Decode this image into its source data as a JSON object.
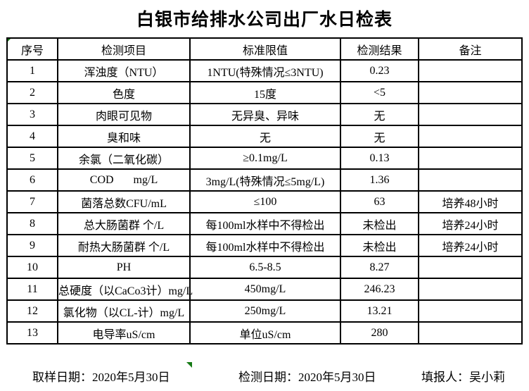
{
  "title": "白银市给排水公司出厂水日检表",
  "table": {
    "headers": {
      "no": "序号",
      "item": "检测项目",
      "limit": "标准限值",
      "result": "检测结果",
      "note": "备注"
    },
    "rows": [
      {
        "no": "1",
        "item": "浑浊度（NTU）",
        "limit": "1NTU(特殊情况≤3NTU)",
        "result": "0.23",
        "note": ""
      },
      {
        "no": "2",
        "item": "色度",
        "limit": "15度",
        "result": "<5",
        "note": ""
      },
      {
        "no": "3",
        "item": "肉眼可见物",
        "limit": "无异臭、异味",
        "result": "无",
        "note": ""
      },
      {
        "no": "4",
        "item": "臭和味",
        "limit": "无",
        "result": "无",
        "note": ""
      },
      {
        "no": "5",
        "item": "余氯（二氧化碳）",
        "limit": "≥0.1mg/L",
        "result": "0.13",
        "note": ""
      },
      {
        "no": "6",
        "item": "COD       mg/L",
        "limit": "3mg/L(特殊情况≤5mg/L)",
        "result": "1.36",
        "note": ""
      },
      {
        "no": "7",
        "item": "菌落总数CFU/mL",
        "limit": "≤100",
        "result": "63",
        "note": "培养48小时"
      },
      {
        "no": "8",
        "item": "总大肠菌群 个/L",
        "limit": "每100ml水样中不得检出",
        "result": "未检出",
        "note": "培养24小时"
      },
      {
        "no": "9",
        "item": "耐热大肠菌群 个/L",
        "limit": "每100ml水样中不得检出",
        "result": "未检出",
        "note": "培养24小时"
      },
      {
        "no": "10",
        "item": "PH",
        "limit": "6.5-8.5",
        "result": "8.27",
        "note": ""
      },
      {
        "no": "11",
        "item": "总硬度（以CaCo3计）mg/L",
        "limit": "450mg/L",
        "result": "246.23",
        "note": ""
      },
      {
        "no": "12",
        "item": "氯化物（以CL-计）mg/L",
        "limit": "250mg/L",
        "result": "13.21",
        "note": ""
      },
      {
        "no": "13",
        "item": "电导率uS/cm",
        "limit": "单位uS/cm",
        "result": "280",
        "note": ""
      }
    ]
  },
  "footer": {
    "sampling_date": "取样日期：2020年5月30日",
    "test_date": "检测日期：2020年5月30日",
    "reporter": "填报人：吴小莉"
  },
  "colors": {
    "marker_green": "#157a15",
    "border": "#000000",
    "background": "#ffffff",
    "text": "#000000"
  },
  "icons": {
    "cell_marker_top_left": "green-corner-triangle",
    "cell_marker_bottom": "green-corner-triangle"
  }
}
